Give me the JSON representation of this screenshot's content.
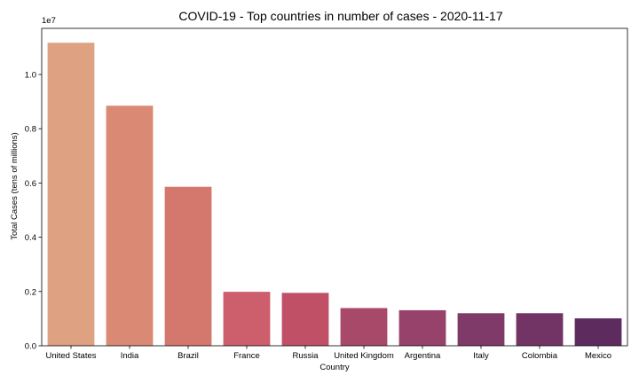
{
  "chart_data": {
    "type": "bar",
    "title": "COVID-19 - Top countries in number of cases - 2020-11-17",
    "xlabel": "Country",
    "ylabel": "Total Cases (tens of millions)",
    "scale_label": "1e7",
    "ylim": [
      0,
      11700000
    ],
    "yticks": [
      0,
      2000000,
      4000000,
      6000000,
      8000000,
      10000000
    ],
    "ytick_labels": [
      "0.0",
      "0.2",
      "0.4",
      "0.6",
      "0.8",
      "1.0"
    ],
    "categories": [
      "United States",
      "India",
      "Brazil",
      "France",
      "Russia",
      "United Kingdom",
      "Argentina",
      "Italy",
      "Colombia",
      "Mexico"
    ],
    "values": [
      11170000,
      8850000,
      5860000,
      1990000,
      1950000,
      1390000,
      1310000,
      1200000,
      1200000,
      1010000
    ],
    "colors": [
      "#dea182",
      "#da8a74",
      "#d4786d",
      "#cd5f6c",
      "#c05066",
      "#a9496a",
      "#96426b",
      "#7f3a69",
      "#713465",
      "#5e2b5f"
    ],
    "grid": false,
    "legend": "none"
  }
}
